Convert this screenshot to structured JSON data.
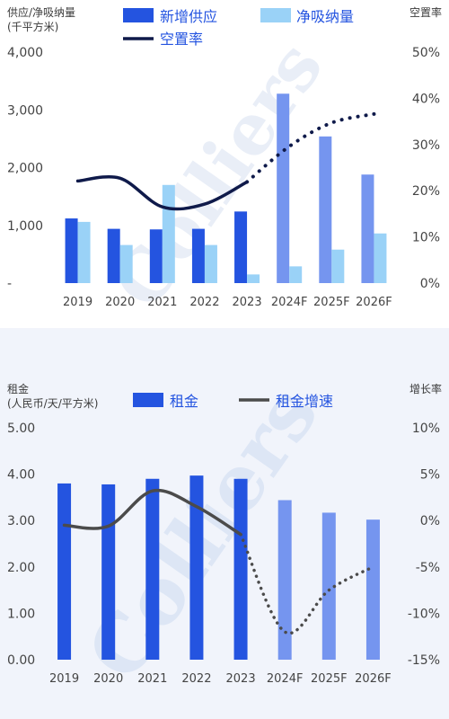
{
  "colors": {
    "supply": "#2454e0",
    "absorption": "#9ad2f7",
    "vacancy": "#0f1a4a",
    "rent": "#2454e0",
    "rent_forecast": "#7595ef",
    "rent_growth": "#4b4b4b",
    "watermark": "#dde6f5"
  },
  "watermark": "Colliers",
  "chart_data": [
    {
      "type": "bar",
      "title": "",
      "ylabel": "供应/净吸纳量\n(千平方米)",
      "y2label": "空置率",
      "categories": [
        "2019",
        "2020",
        "2021",
        "2022",
        "2023",
        "2024F",
        "2025F",
        "2026F"
      ],
      "forecast_from_index": 5,
      "ylim": [
        0,
        4000
      ],
      "y_ticks": [
        "-",
        "1,000",
        "2,000",
        "3,000",
        "4,000"
      ],
      "y2lim": [
        0,
        50
      ],
      "y2_ticks": [
        "0%",
        "10%",
        "20%",
        "30%",
        "40%",
        "50%"
      ],
      "legend": [
        "新增供应",
        "净吸纳量",
        "空置率"
      ],
      "series": [
        {
          "name": "新增供应",
          "kind": "bar",
          "values": [
            1120,
            940,
            930,
            940,
            1240,
            3280,
            2540,
            1880
          ]
        },
        {
          "name": "净吸纳量",
          "kind": "bar",
          "values": [
            1060,
            660,
            1700,
            660,
            150,
            290,
            580,
            860
          ]
        },
        {
          "name": "空置率",
          "kind": "line",
          "axis": "right",
          "values": [
            22.1,
            22.7,
            16.5,
            17.1,
            21.9,
            29.6,
            34.7,
            36.6
          ]
        }
      ]
    },
    {
      "type": "bar",
      "title": "",
      "ylabel": "租金\n(人民币/天/平方米)",
      "y2label": "增长率",
      "categories": [
        "2019",
        "2020",
        "2021",
        "2022",
        "2023",
        "2024F",
        "2025F",
        "2026F"
      ],
      "forecast_from_index": 5,
      "ylim": [
        0,
        5
      ],
      "y_ticks": [
        "0.00",
        "1.00",
        "2.00",
        "3.00",
        "4.00",
        "5.00"
      ],
      "y2lim": [
        -15,
        10
      ],
      "y2_ticks": [
        "-15%",
        "-10%",
        "-5%",
        "0%",
        "5%",
        "10%"
      ],
      "legend": [
        "租金",
        "租金增速"
      ],
      "series": [
        {
          "name": "租金",
          "kind": "bar",
          "values": [
            3.8,
            3.78,
            3.9,
            3.97,
            3.9,
            3.44,
            3.17,
            3.02
          ]
        },
        {
          "name": "租金增速",
          "kind": "line",
          "axis": "right",
          "values": [
            -0.5,
            -0.6,
            3.2,
            1.5,
            -1.5,
            -12.0,
            -7.5,
            -5.0
          ]
        }
      ]
    }
  ]
}
